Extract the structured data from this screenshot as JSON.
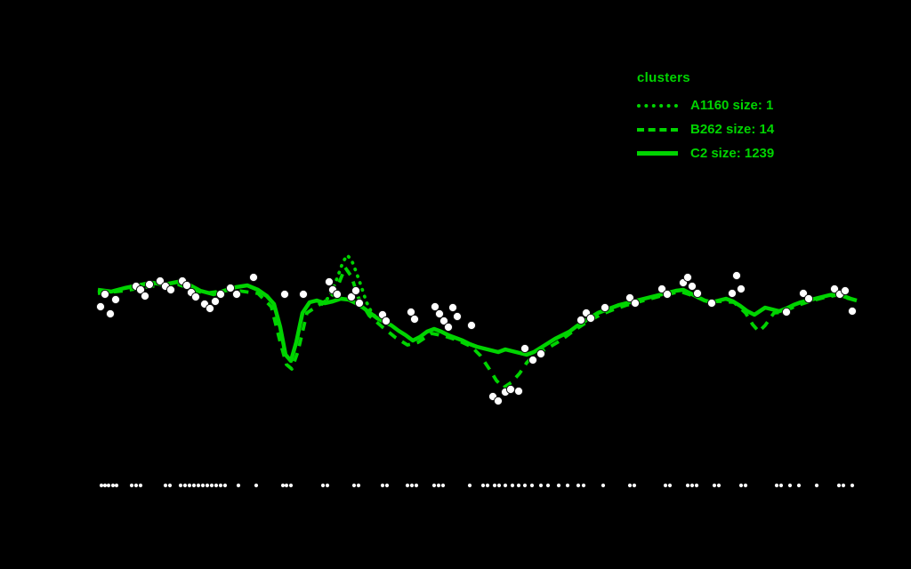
{
  "colors": {
    "background": "#000000",
    "line": "#00d400",
    "points": "#ffffff"
  },
  "legend": {
    "title": "clusters",
    "entries": [
      {
        "label": "A1160 size: 1",
        "style": "dotted"
      },
      {
        "label": "B262 size: 14",
        "style": "dashed"
      },
      {
        "label": "C2 size: 1239",
        "style": "solid"
      }
    ]
  },
  "chart_data": {
    "type": "line",
    "title": "",
    "xlabel": "",
    "ylabel": "",
    "note": "Axes, ticks and titles are not visible (black on black). Coordinates are pixel positions on the 1024x640 canvas. Three green cluster profile lines, white observation markers, and a white rug-dot strip near the bottom.",
    "legend_position": "top-right",
    "grid": false,
    "series": [
      {
        "name": "A1160 size: 1",
        "style": "dotted",
        "points": [
          [
            362,
            342
          ],
          [
            368,
            336
          ],
          [
            374,
            326
          ],
          [
            380,
            310
          ],
          [
            385,
            296
          ],
          [
            390,
            287
          ],
          [
            395,
            292
          ],
          [
            400,
            305
          ],
          [
            406,
            322
          ],
          [
            412,
            340
          ],
          [
            418,
            352
          ],
          [
            426,
            360
          ]
        ]
      },
      {
        "name": "B262 size: 14",
        "style": "dashed",
        "points": [
          [
            110,
            330
          ],
          [
            140,
            327
          ],
          [
            170,
            322
          ],
          [
            200,
            320
          ],
          [
            230,
            330
          ],
          [
            260,
            326
          ],
          [
            290,
            330
          ],
          [
            305,
            345
          ],
          [
            315,
            385
          ],
          [
            322,
            410
          ],
          [
            328,
            415
          ],
          [
            335,
            395
          ],
          [
            345,
            352
          ],
          [
            360,
            342
          ],
          [
            372,
            335
          ],
          [
            380,
            321
          ],
          [
            388,
            301
          ],
          [
            395,
            311
          ],
          [
            403,
            335
          ],
          [
            415,
            355
          ],
          [
            430,
            368
          ],
          [
            445,
            380
          ],
          [
            458,
            388
          ],
          [
            470,
            385
          ],
          [
            485,
            375
          ],
          [
            500,
            378
          ],
          [
            515,
            383
          ],
          [
            530,
            390
          ],
          [
            540,
            400
          ],
          [
            550,
            415
          ],
          [
            558,
            428
          ],
          [
            566,
            436
          ],
          [
            575,
            430
          ],
          [
            584,
            420
          ],
          [
            592,
            408
          ],
          [
            600,
            400
          ],
          [
            615,
            392
          ],
          [
            630,
            383
          ],
          [
            645,
            372
          ],
          [
            660,
            362
          ],
          [
            675,
            354
          ],
          [
            690,
            348
          ],
          [
            705,
            343
          ],
          [
            720,
            339
          ],
          [
            735,
            335
          ],
          [
            750,
            331
          ],
          [
            765,
            328
          ],
          [
            780,
            333
          ],
          [
            795,
            339
          ],
          [
            810,
            339
          ],
          [
            825,
            340
          ],
          [
            838,
            352
          ],
          [
            846,
            365
          ],
          [
            853,
            373
          ],
          [
            860,
            366
          ],
          [
            870,
            352
          ],
          [
            880,
            351
          ],
          [
            895,
            344
          ],
          [
            910,
            339
          ],
          [
            925,
            335
          ],
          [
            940,
            332
          ],
          [
            955,
            336
          ]
        ]
      },
      {
        "name": "C2 size: 1239",
        "style": "solid",
        "points": [
          [
            110,
            326
          ],
          [
            125,
            328
          ],
          [
            140,
            324
          ],
          [
            155,
            321
          ],
          [
            170,
            318
          ],
          [
            185,
            320
          ],
          [
            200,
            317
          ],
          [
            212,
            320
          ],
          [
            225,
            327
          ],
          [
            240,
            331
          ],
          [
            252,
            327
          ],
          [
            265,
            323
          ],
          [
            278,
            321
          ],
          [
            290,
            326
          ],
          [
            300,
            333
          ],
          [
            308,
            342
          ],
          [
            315,
            368
          ],
          [
            321,
            399
          ],
          [
            327,
            406
          ],
          [
            333,
            385
          ],
          [
            340,
            352
          ],
          [
            348,
            340
          ],
          [
            356,
            338
          ],
          [
            365,
            341
          ],
          [
            374,
            339
          ],
          [
            383,
            336
          ],
          [
            392,
            337
          ],
          [
            400,
            341
          ],
          [
            408,
            346
          ],
          [
            416,
            352
          ],
          [
            424,
            358
          ],
          [
            432,
            362
          ],
          [
            440,
            366
          ],
          [
            448,
            372
          ],
          [
            456,
            377
          ],
          [
            464,
            383
          ],
          [
            472,
            379
          ],
          [
            480,
            373
          ],
          [
            488,
            370
          ],
          [
            496,
            373
          ],
          [
            504,
            377
          ],
          [
            512,
            380
          ],
          [
            520,
            383
          ],
          [
            528,
            387
          ],
          [
            536,
            390
          ],
          [
            544,
            392
          ],
          [
            552,
            394
          ],
          [
            560,
            396
          ],
          [
            568,
            393
          ],
          [
            576,
            395
          ],
          [
            584,
            397
          ],
          [
            592,
            399
          ],
          [
            600,
            396
          ],
          [
            608,
            391
          ],
          [
            616,
            386
          ],
          [
            624,
            381
          ],
          [
            632,
            377
          ],
          [
            640,
            373
          ],
          [
            648,
            367
          ],
          [
            656,
            362
          ],
          [
            664,
            357
          ],
          [
            672,
            352
          ],
          [
            680,
            349
          ],
          [
            688,
            346
          ],
          [
            696,
            343
          ],
          [
            704,
            341
          ],
          [
            712,
            339
          ],
          [
            720,
            337
          ],
          [
            728,
            335
          ],
          [
            736,
            333
          ],
          [
            744,
            331
          ],
          [
            752,
            329
          ],
          [
            760,
            327
          ],
          [
            768,
            326
          ],
          [
            776,
            330
          ],
          [
            784,
            334
          ],
          [
            792,
            338
          ],
          [
            800,
            340
          ],
          [
            808,
            338
          ],
          [
            816,
            336
          ],
          [
            824,
            339
          ],
          [
            832,
            344
          ],
          [
            840,
            350
          ],
          [
            848,
            354
          ],
          [
            854,
            350
          ],
          [
            860,
            346
          ],
          [
            868,
            348
          ],
          [
            876,
            350
          ],
          [
            884,
            347
          ],
          [
            892,
            343
          ],
          [
            900,
            340
          ],
          [
            908,
            338
          ],
          [
            916,
            336
          ],
          [
            924,
            334
          ],
          [
            932,
            332
          ],
          [
            940,
            331
          ],
          [
            948,
            333
          ],
          [
            956,
            336
          ],
          [
            963,
            338
          ]
        ]
      }
    ],
    "scatter": {
      "name": "observations",
      "points": [
        [
          113,
          345
        ],
        [
          118,
          331
        ],
        [
          124,
          353
        ],
        [
          130,
          337
        ],
        [
          153,
          322
        ],
        [
          158,
          326
        ],
        [
          163,
          333
        ],
        [
          168,
          320
        ],
        [
          180,
          316
        ],
        [
          186,
          322
        ],
        [
          192,
          326
        ],
        [
          205,
          316
        ],
        [
          210,
          321
        ],
        [
          215,
          329
        ],
        [
          220,
          334
        ],
        [
          230,
          342
        ],
        [
          236,
          347
        ],
        [
          242,
          339
        ],
        [
          248,
          331
        ],
        [
          259,
          324
        ],
        [
          266,
          331
        ],
        [
          285,
          312
        ],
        [
          320,
          331
        ],
        [
          341,
          331
        ],
        [
          370,
          317
        ],
        [
          374,
          326
        ],
        [
          379,
          331
        ],
        [
          395,
          334
        ],
        [
          400,
          327
        ],
        [
          404,
          341
        ],
        [
          430,
          354
        ],
        [
          434,
          361
        ],
        [
          462,
          351
        ],
        [
          466,
          359
        ],
        [
          489,
          345
        ],
        [
          494,
          353
        ],
        [
          499,
          361
        ],
        [
          504,
          368
        ],
        [
          509,
          346
        ],
        [
          514,
          356
        ],
        [
          530,
          366
        ],
        [
          554,
          446
        ],
        [
          560,
          451
        ],
        [
          568,
          441
        ],
        [
          574,
          438
        ],
        [
          583,
          440
        ],
        [
          590,
          392
        ],
        [
          599,
          405
        ],
        [
          608,
          398
        ],
        [
          653,
          360
        ],
        [
          659,
          352
        ],
        [
          664,
          358
        ],
        [
          680,
          346
        ],
        [
          708,
          335
        ],
        [
          714,
          341
        ],
        [
          744,
          325
        ],
        [
          750,
          331
        ],
        [
          768,
          318
        ],
        [
          773,
          312
        ],
        [
          778,
          322
        ],
        [
          784,
          330
        ],
        [
          800,
          341
        ],
        [
          823,
          330
        ],
        [
          828,
          310
        ],
        [
          833,
          325
        ],
        [
          884,
          351
        ],
        [
          903,
          330
        ],
        [
          909,
          336
        ],
        [
          938,
          325
        ],
        [
          944,
          331
        ],
        [
          950,
          327
        ],
        [
          958,
          350
        ]
      ]
    },
    "rug": {
      "y": 546,
      "x": [
        114,
        118,
        122,
        127,
        131,
        148,
        153,
        158,
        186,
        191,
        203,
        208,
        213,
        218,
        223,
        228,
        233,
        238,
        243,
        248,
        253,
        268,
        288,
        318,
        322,
        327,
        363,
        368,
        398,
        403,
        430,
        435,
        458,
        463,
        468,
        488,
        493,
        498,
        528,
        543,
        548,
        556,
        561,
        568,
        576,
        583,
        590,
        598,
        608,
        616,
        628,
        638,
        650,
        656,
        678,
        708,
        713,
        748,
        753,
        773,
        778,
        783,
        803,
        808,
        833,
        838,
        873,
        878,
        888,
        898,
        918,
        943,
        948,
        958
      ]
    }
  }
}
